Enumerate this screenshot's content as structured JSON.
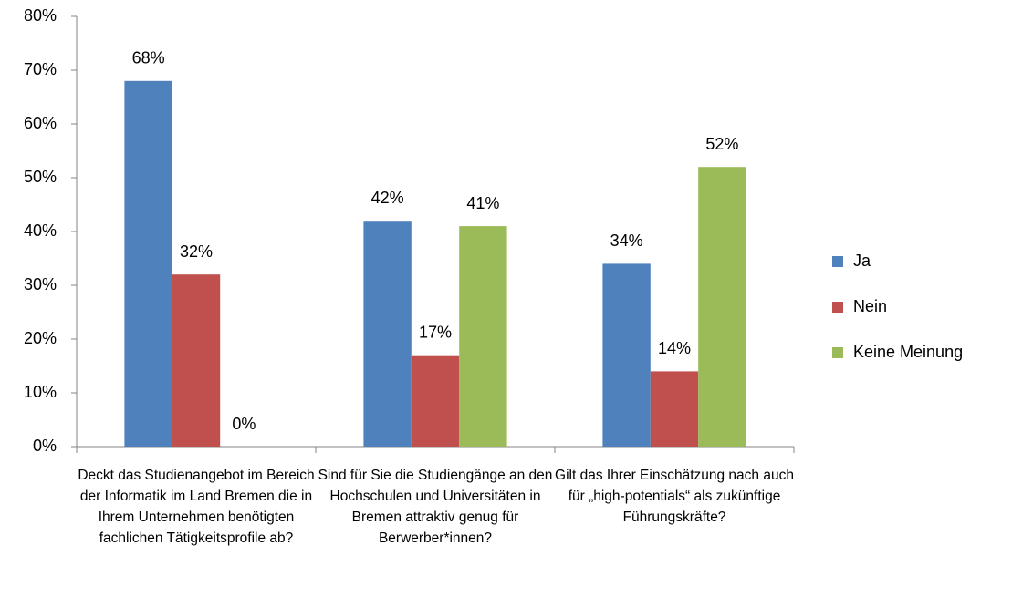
{
  "chart_data": {
    "type": "bar",
    "categories": [
      "Deckt das Studienangebot im Bereich der Informatik im Land Bremen die in Ihrem Unternehmen benötigten fachlichen Tätigkeitsprofile ab?",
      "Sind für Sie die Studiengänge an den Hochschulen und Universitäten in Bremen attraktiv genug für Berwerber*innen?",
      "Gilt das Ihrer Einschätzung nach auch für „high-potentials“ als zukünftige Führungskräfte?"
    ],
    "series": [
      {
        "name": "Ja",
        "color": "#4f81bd",
        "values": [
          68,
          42,
          34
        ],
        "value_labels": [
          "68%",
          "42%",
          "34%"
        ]
      },
      {
        "name": "Nein",
        "color": "#c0504d",
        "values": [
          32,
          17,
          14
        ],
        "value_labels": [
          "32%",
          "17%",
          "14%"
        ]
      },
      {
        "name": "Keine Meinung",
        "color": "#9bbb59",
        "values": [
          0,
          41,
          52
        ],
        "value_labels": [
          "0%",
          "41%",
          "52%"
        ]
      }
    ],
    "ylim": [
      0,
      80
    ],
    "yticks": [
      {
        "value": 0,
        "label": "0%"
      },
      {
        "value": 10,
        "label": "10%"
      },
      {
        "value": 20,
        "label": "20%"
      },
      {
        "value": 30,
        "label": "30%"
      },
      {
        "value": 40,
        "label": "40%"
      },
      {
        "value": 50,
        "label": "50%"
      },
      {
        "value": 60,
        "label": "60%"
      },
      {
        "value": 70,
        "label": "70%"
      },
      {
        "value": 80,
        "label": "80%"
      }
    ],
    "grid": false,
    "legend": "right"
  }
}
